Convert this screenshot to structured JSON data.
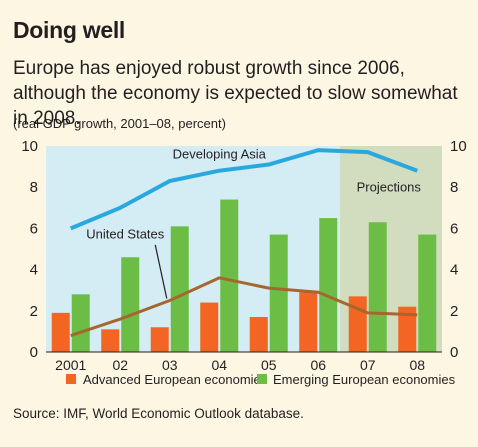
{
  "header": {
    "title": "Doing well",
    "subtitle": "Europe has enjoyed robust growth since 2006, although the economy is expected to slow somewhat in 2008.",
    "note": "(real GDP growth, 2001–08, percent)"
  },
  "footer": {
    "source": "Source: IMF, World Economic Outlook database."
  },
  "colors": {
    "plot_bg": "#d4ecf4",
    "projection_bg": "#d2dcbe",
    "advanced": "#f26522",
    "emerging": "#6cbd45",
    "asia": "#29a8e0",
    "us": "#a5672d"
  },
  "chart_data": {
    "type": "bar",
    "categories": [
      "2001",
      "02",
      "03",
      "04",
      "05",
      "06",
      "07",
      "08"
    ],
    "ylim": [
      0,
      10
    ],
    "yticks": [
      0,
      2,
      4,
      6,
      8,
      10
    ],
    "projection_start_index": 6,
    "series": [
      {
        "name": "Advanced European economies",
        "kind": "bar",
        "values": [
          1.9,
          1.1,
          1.2,
          2.4,
          1.7,
          2.9,
          2.7,
          2.2
        ]
      },
      {
        "name": "Emerging European economies",
        "kind": "bar",
        "values": [
          2.8,
          4.6,
          6.1,
          7.4,
          5.7,
          6.5,
          6.3,
          5.7
        ]
      },
      {
        "name": "Developing Asia",
        "kind": "line",
        "values": [
          6.0,
          7.0,
          8.3,
          8.8,
          9.1,
          9.8,
          9.7,
          8.8
        ]
      },
      {
        "name": "United States",
        "kind": "line",
        "values": [
          0.8,
          1.6,
          2.5,
          3.6,
          3.1,
          2.9,
          1.9,
          1.8
        ]
      }
    ],
    "annotations": {
      "projections": "Projections",
      "asia_label": "Developing Asia",
      "us_label": "United States"
    },
    "legend": {
      "placement": "bottom"
    }
  }
}
